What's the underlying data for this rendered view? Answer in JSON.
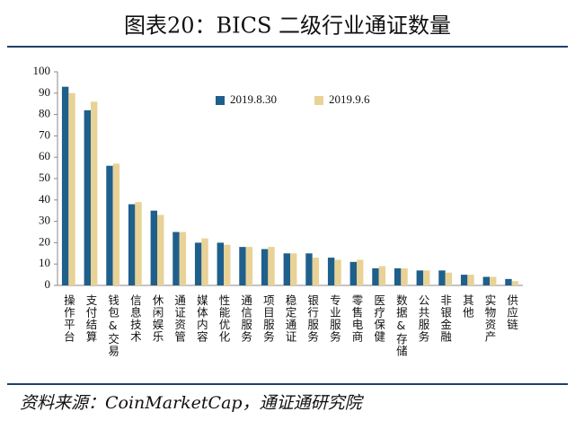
{
  "chart_data": {
    "type": "bar",
    "title": "图表20：BICS 二级行业通证数量",
    "source": "资料来源：CoinMarketCap，通证通研究院",
    "categories": [
      "操作平台",
      "支付结算",
      "钱包&交易",
      "信息技术",
      "休闲娱乐",
      "通证资管",
      "媒体内容",
      "性能优化",
      "通信服务",
      "项目服务",
      "稳定通证",
      "银行服务",
      "专业服务",
      "零售电商",
      "医疗保健",
      "数据&存储",
      "公共服务",
      "非银金融",
      "其他",
      "实物资产",
      "供应链"
    ],
    "series": [
      {
        "name": "2019.8.30",
        "color": "#1f5f8b",
        "values": [
          93,
          82,
          56,
          38,
          35,
          25,
          20,
          20,
          18,
          17,
          15,
          15,
          13,
          11,
          8,
          8,
          7,
          7,
          5,
          4,
          3
        ]
      },
      {
        "name": "2019.9.6",
        "color": "#e8d296",
        "values": [
          90,
          86,
          57,
          39,
          33,
          25,
          22,
          19,
          18,
          18,
          15,
          13,
          12,
          12,
          9,
          8,
          7,
          6,
          5,
          4,
          2
        ]
      }
    ],
    "ylim": [
      0,
      100
    ],
    "yticks": [
      0,
      10,
      20,
      30,
      40,
      50,
      60,
      70,
      80,
      90,
      100
    ]
  }
}
